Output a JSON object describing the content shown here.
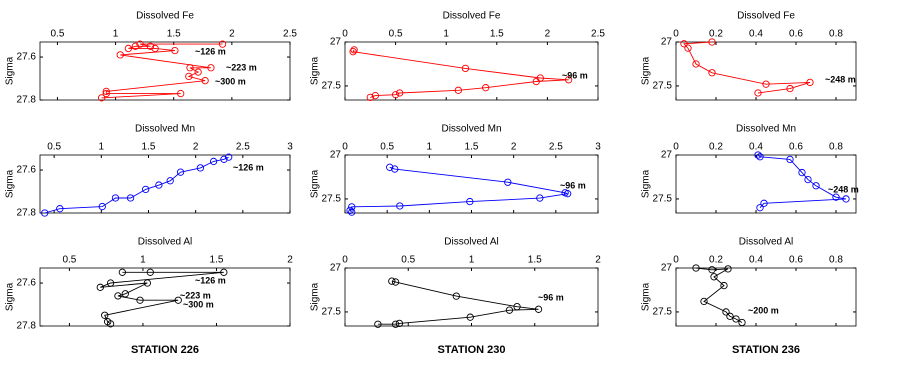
{
  "chart_data": [
    {
      "type": "line",
      "title": "Dissolved Fe",
      "y_label": "Sigma",
      "color": "#ff0000",
      "x": [
        1.92,
        1.21,
        1.3,
        1.17,
        1.11,
        1.34,
        1.51,
        1.04,
        1.82,
        1.64,
        1.71,
        1.63,
        1.77,
        0.92,
        0.92,
        1.56,
        0.88
      ],
      "values": [
        27.54,
        27.54,
        27.55,
        27.55,
        27.56,
        27.56,
        27.57,
        27.59,
        27.65,
        27.65,
        27.67,
        27.69,
        27.71,
        27.76,
        27.77,
        27.77,
        27.79
      ],
      "xlim": [
        0.35,
        2.5
      ],
      "xticks": [
        0.5,
        1,
        1.5,
        2,
        2.5
      ],
      "ylim": [
        27.53,
        27.8
      ],
      "yticks": [
        27.6,
        27.8
      ],
      "y_inverted": true,
      "annotations": [
        "~126 m",
        "~223 m",
        "~300 m"
      ]
    },
    {
      "type": "line",
      "title": "Dissolved Fe",
      "y_label": "Sigma",
      "color": "#ff0000",
      "x": [
        0.09,
        0.08,
        1.19,
        1.93,
        2.21,
        1.89,
        1.39,
        1.12,
        0.54,
        0.5,
        0.3,
        0.25
      ],
      "values": [
        27.09,
        27.11,
        27.3,
        27.41,
        27.43,
        27.45,
        27.52,
        27.55,
        27.58,
        27.6,
        27.61,
        27.63
      ],
      "xlim": [
        0,
        2.5
      ],
      "xticks": [
        0,
        0.5,
        1,
        1.5,
        2,
        2.5
      ],
      "ylim": [
        27,
        27.66
      ],
      "yticks": [
        27,
        27.5
      ],
      "y_inverted": true,
      "annotations": [
        "~96 m"
      ]
    },
    {
      "type": "line",
      "title": "Dissolved Fe",
      "y_label": "Sigma",
      "color": "#ff0000",
      "x": [
        0.18,
        0.04,
        0.06,
        0.1,
        0.18,
        0.45,
        0.67,
        0.57,
        0.41
      ],
      "values": [
        27.0,
        27.02,
        27.07,
        27.25,
        27.35,
        27.48,
        27.46,
        27.53,
        27.58
      ],
      "xlim": [
        0,
        0.9
      ],
      "xticks": [
        0,
        0.2,
        0.4,
        0.6,
        0.8
      ],
      "ylim": [
        27,
        27.66
      ],
      "yticks": [
        27,
        27.5
      ],
      "y_inverted": true,
      "annotations": [
        "~248 m"
      ]
    },
    {
      "type": "line",
      "title": "Dissolved Mn",
      "y_label": "Sigma",
      "color": "#0000ff",
      "x": [
        2.35,
        2.3,
        2.19,
        2.05,
        1.84,
        1.73,
        1.61,
        1.47,
        1.31,
        1.15,
        1.01,
        0.56,
        0.4
      ],
      "values": [
        27.54,
        27.55,
        27.56,
        27.59,
        27.61,
        27.65,
        27.67,
        27.69,
        27.73,
        27.73,
        27.77,
        27.78,
        27.8
      ],
      "xlim": [
        0.35,
        3
      ],
      "xticks": [
        0.5,
        1,
        1.5,
        2,
        2.5,
        3
      ],
      "ylim": [
        27.53,
        27.8
      ],
      "yticks": [
        27.6,
        27.8
      ],
      "y_inverted": true,
      "annotations": [
        "~126 m"
      ]
    },
    {
      "type": "line",
      "title": "Dissolved Mn",
      "y_label": "Sigma",
      "color": "#0000ff",
      "x": [
        0.53,
        0.59,
        1.93,
        2.61,
        2.64,
        2.31,
        1.48,
        0.65,
        0.08,
        0.06,
        0.08
      ],
      "values": [
        27.14,
        27.16,
        27.31,
        27.43,
        27.44,
        27.49,
        27.53,
        27.58,
        27.59,
        27.63,
        27.65
      ],
      "xlim": [
        0,
        3
      ],
      "xticks": [
        0,
        0.5,
        1,
        1.5,
        2,
        2.5,
        3
      ],
      "ylim": [
        27,
        27.66
      ],
      "yticks": [
        27,
        27.5
      ],
      "y_inverted": true,
      "annotations": [
        "~96 m"
      ]
    },
    {
      "type": "line",
      "title": "Dissolved Mn",
      "y_label": "Sigma",
      "color": "#0000ff",
      "x": [
        0.41,
        0.42,
        0.57,
        0.63,
        0.66,
        0.7,
        0.8,
        0.85,
        0.44,
        0.42
      ],
      "values": [
        27.0,
        27.02,
        27.05,
        27.2,
        27.28,
        27.35,
        27.48,
        27.5,
        27.55,
        27.6
      ],
      "xlim": [
        0,
        0.9
      ],
      "xticks": [
        0,
        0.2,
        0.4,
        0.6,
        0.8
      ],
      "ylim": [
        27,
        27.66
      ],
      "yticks": [
        27,
        27.5
      ],
      "y_inverted": true,
      "annotations": [
        "~248 m"
      ]
    },
    {
      "type": "line",
      "title": "Dissolved Al",
      "y_label": "Sigma",
      "color": "#000000",
      "x": [
        0.86,
        1.05,
        1.55,
        0.78,
        0.71,
        1.03,
        0.88,
        0.83,
        0.98,
        1.24,
        0.74,
        0.76,
        0.78
      ],
      "values": [
        27.55,
        27.55,
        27.55,
        27.6,
        27.62,
        27.6,
        27.65,
        27.66,
        27.68,
        27.68,
        27.75,
        27.78,
        27.79
      ],
      "xlim": [
        0.3,
        2
      ],
      "xticks": [
        0.5,
        1,
        1.5,
        2
      ],
      "ylim": [
        27.53,
        27.8
      ],
      "yticks": [
        27.6,
        27.8
      ],
      "y_inverted": true,
      "annotations": [
        "~126 m",
        "~223 m",
        "~300 m"
      ]
    },
    {
      "type": "line",
      "title": "Dissolved Al",
      "y_label": "Sigma",
      "color": "#000000",
      "x": [
        0.37,
        0.4,
        0.88,
        1.36,
        1.53,
        1.3,
        0.99,
        0.43,
        0.4,
        0.26
      ],
      "values": [
        27.15,
        27.16,
        27.32,
        27.44,
        27.47,
        27.48,
        27.56,
        27.63,
        27.64,
        27.64
      ],
      "xlim": [
        0,
        2
      ],
      "xticks": [
        0,
        0.5,
        1,
        1.5,
        2
      ],
      "ylim": [
        27,
        27.66
      ],
      "yticks": [
        27,
        27.5
      ],
      "y_inverted": true,
      "annotations": [
        "~96 m"
      ]
    },
    {
      "type": "line",
      "title": "Dissolved Al",
      "y_label": "Sigma",
      "color": "#000000",
      "x": [
        0.1,
        0.18,
        0.26,
        0.19,
        0.24,
        0.14,
        0.25,
        0.27,
        0.3,
        0.33
      ],
      "values": [
        27.0,
        27.02,
        27.01,
        27.1,
        27.2,
        27.38,
        27.5,
        27.55,
        27.58,
        27.62
      ],
      "xlim": [
        0,
        0.9
      ],
      "xticks": [
        0,
        0.2,
        0.4,
        0.6,
        0.8
      ],
      "ylim": [
        27,
        27.66
      ],
      "yticks": [
        27,
        27.5
      ],
      "y_inverted": true,
      "annotations": [
        "~200 m"
      ]
    }
  ],
  "stations": [
    "STATION 226",
    "STATION 230",
    "STATION 236"
  ]
}
